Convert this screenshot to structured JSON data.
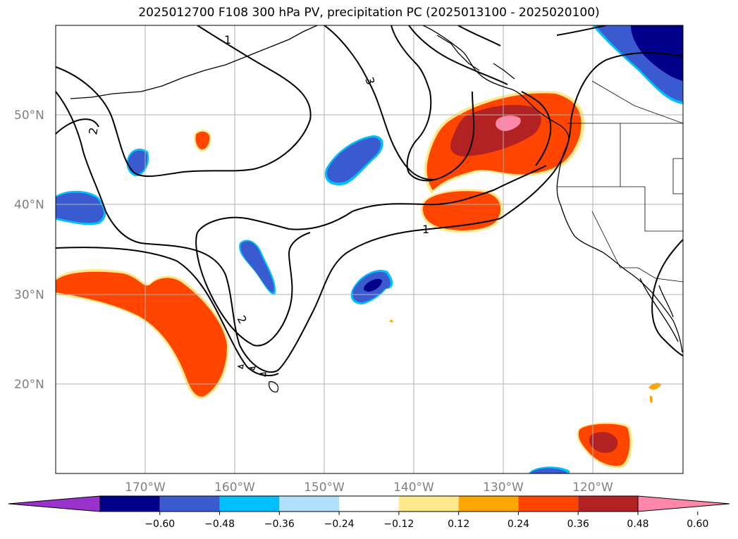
{
  "title": "2025012700 F108 300 hPa PV, precipitation PC (2025013100 - 2025020100)",
  "map": {
    "lat_labels": [
      "50°N",
      "40°N",
      "30°N",
      "20°N"
    ],
    "lon_labels": [
      "170°W",
      "160°W",
      "150°W",
      "140°W",
      "130°W",
      "120°W"
    ],
    "contour_labels": [
      "1",
      "2",
      "3",
      "2",
      "1"
    ]
  },
  "colorbar": {
    "colors": [
      "#9932cc",
      "#00008b",
      "#3a5bcf",
      "#00bfff",
      "#b0e0fa",
      "#ffffff",
      "#ffe88a",
      "#ffa500",
      "#ff4500",
      "#b22222",
      "#ff88aa"
    ],
    "tick_labels": [
      "−0.60",
      "−0.48",
      "−0.36",
      "−0.24",
      "−0.12",
      "0.12",
      "0.24",
      "0.36",
      "0.48",
      "0.60"
    ]
  },
  "chart_data": {
    "type": "map",
    "title": "2025012700 F108 300 hPa PV, precipitation PC (2025013100 - 2025020100)",
    "extent": {
      "lon_min": -180,
      "lon_max": -110,
      "lat_min": 10,
      "lat_max": 60
    },
    "gridlines": true,
    "contours": [
      {
        "field": "300 hPa PV",
        "levels": [
          1,
          2,
          3
        ]
      }
    ],
    "filled_levels": [
      -0.6,
      -0.48,
      -0.36,
      -0.24,
      -0.12,
      0.12,
      0.24,
      0.36,
      0.48,
      0.6
    ],
    "notable_features": [
      {
        "sign": "positive",
        "lon": -131,
        "lat": 45,
        "peak": ">0.60"
      },
      {
        "sign": "positive",
        "lon": -170,
        "lat": 26,
        "peak": "0.36-0.48"
      },
      {
        "sign": "positive",
        "lon": -120,
        "lat": 14,
        "peak": "0.48-0.60"
      },
      {
        "sign": "positive",
        "lon": -164,
        "lat": 47,
        "peak": "0.36-0.48"
      },
      {
        "sign": "negative",
        "lon": -147,
        "lat": 45,
        "peak": "-0.36"
      },
      {
        "sign": "negative",
        "lon": -145,
        "lat": 31,
        "peak": "-0.48"
      },
      {
        "sign": "negative",
        "lon": -158,
        "lat": 33,
        "peak": "-0.36"
      },
      {
        "sign": "negative",
        "lon": -176,
        "lat": 39,
        "peak": "-0.36"
      },
      {
        "sign": "negative",
        "lon": -170,
        "lat": 45,
        "peak": "-0.36"
      },
      {
        "sign": "negative",
        "lon": -112,
        "lat": 56,
        "peak": "-0.48"
      }
    ]
  }
}
